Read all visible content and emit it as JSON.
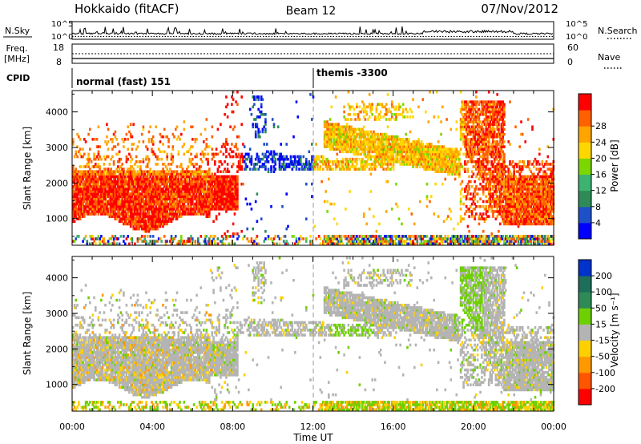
{
  "header": {
    "title": "Hokkaido (fitACF)",
    "beam": "Beam 12",
    "date": "07/Nov/2012"
  },
  "nsky": {
    "label": "N.Sky",
    "left_ticks": [
      "10^5",
      "10^0"
    ],
    "right_ticks": [
      "10^5",
      "10^0"
    ],
    "right_label": "N.Search"
  },
  "freq": {
    "label_line1": "Freq.",
    "label_line2": "[MHz]",
    "left_ticks": [
      "18",
      "8"
    ],
    "right_ticks": [
      "60",
      "0"
    ],
    "right_label": "Nave"
  },
  "cpid": {
    "label": "CPID",
    "program_1": "normal (fast) 151",
    "program_2": "themis -3300"
  },
  "chart_data": [
    {
      "type": "heatmap",
      "panel": "power",
      "ylabel": "Slant Range [km]",
      "ylim": [
        250,
        4600
      ],
      "yticks": [
        1000,
        2000,
        3000,
        4000
      ],
      "colorbar_label": "Power [dB]",
      "colorbar_ticks": [
        4,
        8,
        12,
        16,
        20,
        24,
        28
      ],
      "colors": [
        "#0000ff",
        "#1e50c8",
        "#2e8b57",
        "#3cb371",
        "#7cd600",
        "#ffd700",
        "#ffa500",
        "#ff6000",
        "#ff0000"
      ]
    },
    {
      "type": "heatmap",
      "panel": "velocity",
      "ylabel": "Slant Range [km]",
      "ylim": [
        250,
        4600
      ],
      "yticks": [
        1000,
        2000,
        3000,
        4000
      ],
      "colorbar_label": "Velocity [m s⁻¹]",
      "colorbar_ticks": [
        200,
        100,
        50,
        15,
        -15,
        -50,
        -100,
        -200
      ],
      "colors": [
        "#0033cc",
        "#1e6e5a",
        "#2e8b57",
        "#6ed000",
        "#b4b4b4",
        "#ffd000",
        "#ff9900",
        "#ff5500",
        "#ff0000"
      ]
    }
  ],
  "xaxis": {
    "label": "Time UT",
    "ticks": [
      "00:00",
      "04:00",
      "08:00",
      "12:00",
      "16:00",
      "20:00",
      "00:00"
    ]
  }
}
